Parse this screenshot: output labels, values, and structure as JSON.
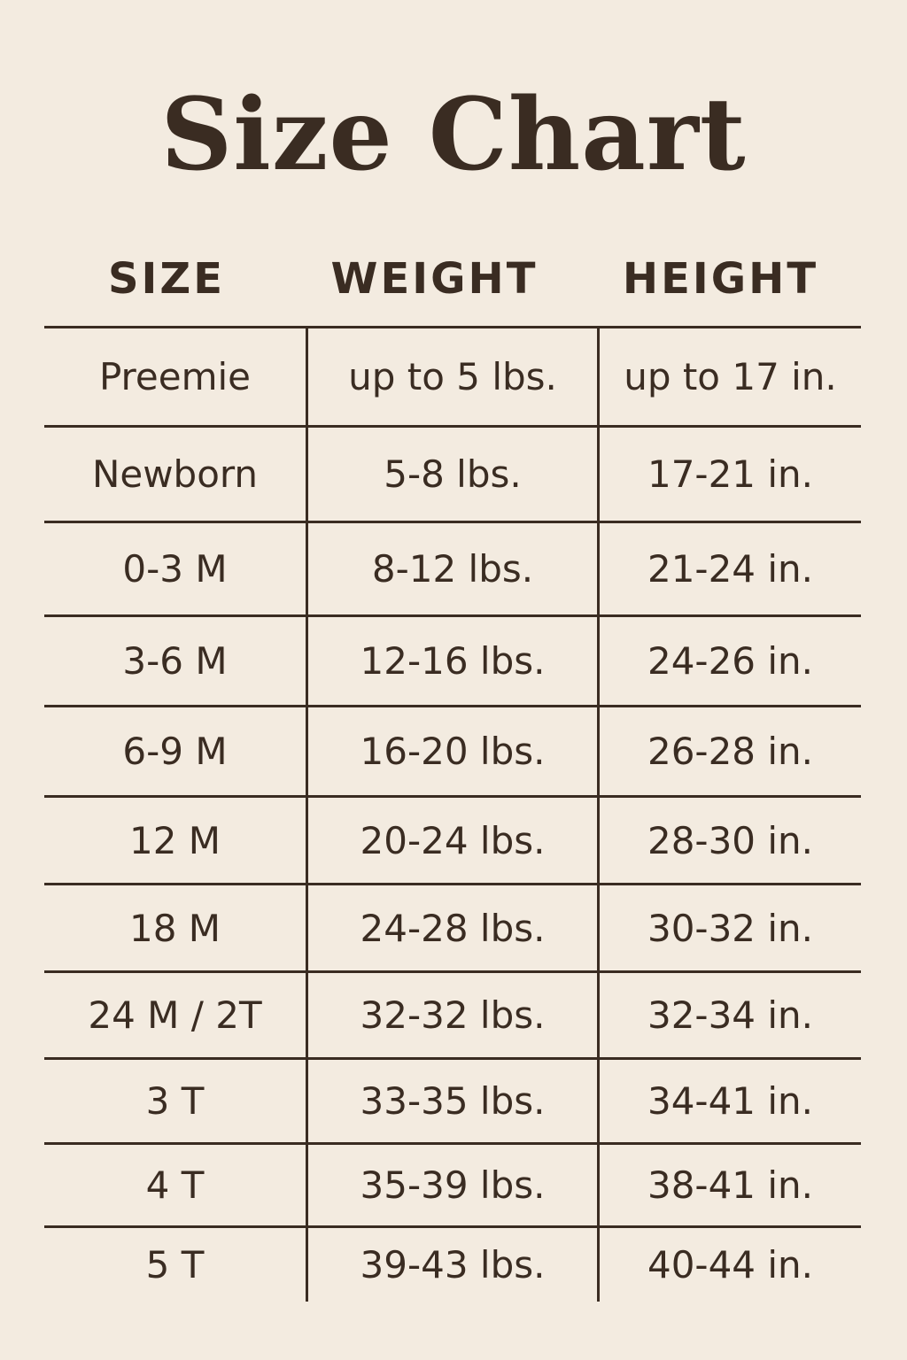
{
  "title": "Size Chart",
  "colors": {
    "background": "#f3ebe0",
    "text": "#3a2c22"
  },
  "headers": [
    "SIZE",
    "WEIGHT",
    "HEIGHT"
  ],
  "rows": [
    [
      "Preemie",
      "up to 5 lbs.",
      "up to 17 in."
    ],
    [
      "Newborn",
      "5-8 lbs.",
      "17-21 in."
    ],
    [
      "0-3 M",
      "8-12 lbs.",
      "21-24 in."
    ],
    [
      "3-6 M",
      "12-16 lbs.",
      "24-26 in."
    ],
    [
      "6-9 M",
      "16-20 lbs.",
      "26-28 in."
    ],
    [
      "12 M",
      "20-24 lbs.",
      "28-30 in."
    ],
    [
      "18 M",
      "24-28 lbs.",
      "30-32 in."
    ],
    [
      "24 M / 2T",
      "32-32 lbs.",
      "32-34 in."
    ],
    [
      "3 T",
      "33-35 lbs.",
      "34-41 in."
    ],
    [
      "4 T",
      "35-39 lbs.",
      "38-41 in."
    ],
    [
      "5 T",
      "39-43 lbs.",
      "40-44 in."
    ]
  ]
}
